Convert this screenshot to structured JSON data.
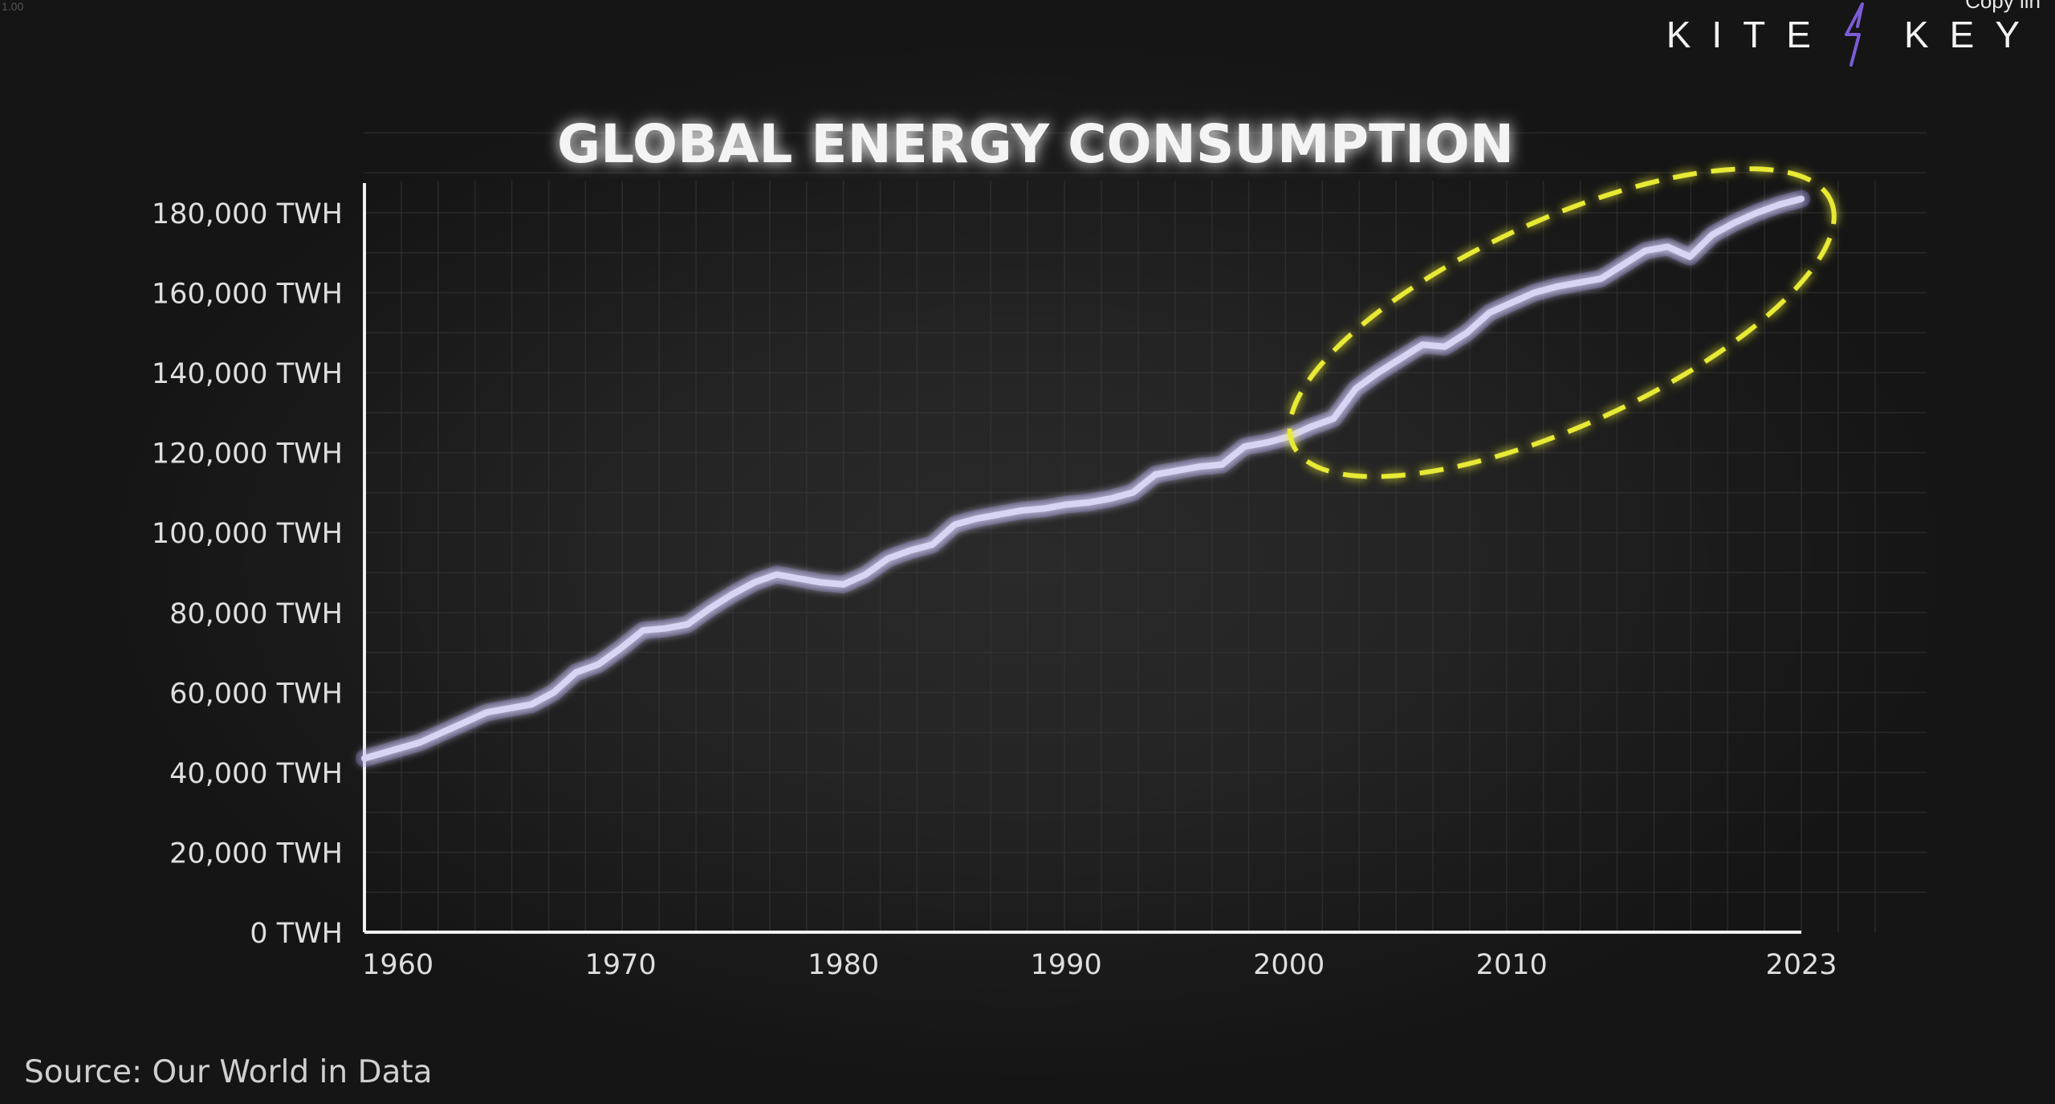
{
  "corner_text": "1.00",
  "brand": {
    "word_left": "KITE",
    "word_right": "KEY",
    "cut_text": "Copy lin",
    "bolt_color": "#7b5cd6"
  },
  "source_text": "Source: Our World in Data",
  "colors": {
    "line": "#d8d4f4",
    "line_glow": "#9c8cff",
    "highlight": "#e8ea36",
    "axis": "#f0f0f0",
    "grid": "#3a3a3a",
    "tick_text": "#dedede"
  },
  "chart_data": {
    "type": "line",
    "title": "GLOBAL ENERGY CONSUMPTION",
    "xlabel": "",
    "ylabel": "",
    "ylim": [
      0,
      180000
    ],
    "xlim": [
      1958.5,
      2023
    ],
    "y_ticks": [
      {
        "value": 0,
        "label": "0 TWH"
      },
      {
        "value": 20000,
        "label": "20,000 TWH"
      },
      {
        "value": 40000,
        "label": "40,000 TWH"
      },
      {
        "value": 60000,
        "label": "60,000 TWH"
      },
      {
        "value": 80000,
        "label": "80,000 TWH"
      },
      {
        "value": 100000,
        "label": "100,000 TWH"
      },
      {
        "value": 120000,
        "label": "120,000 TWH"
      },
      {
        "value": 140000,
        "label": "140,000 TWH"
      },
      {
        "value": 160000,
        "label": "160,000 TWH"
      },
      {
        "value": 180000,
        "label": "180,000 TWH"
      }
    ],
    "x_ticks": [
      {
        "value": 1960,
        "label": "1960"
      },
      {
        "value": 1970,
        "label": "1970"
      },
      {
        "value": 1980,
        "label": "1980"
      },
      {
        "value": 1990,
        "label": "1990"
      },
      {
        "value": 2000,
        "label": "2000"
      },
      {
        "value": 2010,
        "label": "2010"
      },
      {
        "value": 2023,
        "label": "2023"
      }
    ],
    "grid": true,
    "highlight_ellipse": {
      "x_start": 2001,
      "x_end": 2023.5,
      "y_low": 124000,
      "y_high": 181000
    },
    "series": [
      {
        "x": [
          1958.5,
          1961,
          1962,
          1963,
          1964,
          1965,
          1966,
          1967,
          1968,
          1969,
          1970,
          1971,
          1972,
          1973,
          1974,
          1975,
          1976,
          1977,
          1978,
          1979,
          1980,
          1981,
          1982,
          1983,
          1984,
          1985,
          1986,
          1987,
          1988,
          1989,
          1990,
          1991,
          1992,
          1993,
          1994,
          1995,
          1996,
          1997,
          1998,
          1999,
          2000,
          2001,
          2002,
          2003,
          2004,
          2005,
          2006,
          2007,
          2008,
          2009,
          2010,
          2011,
          2012,
          2013,
          2014,
          2015,
          2016,
          2017,
          2018,
          2019,
          2020,
          2021,
          2022,
          2023
        ],
        "y": [
          43500,
          47500,
          50000,
          52500,
          55000,
          56000,
          57000,
          60000,
          65000,
          67000,
          71000,
          75500,
          76000,
          77000,
          81000,
          84500,
          87500,
          89500,
          88500,
          87500,
          87000,
          89500,
          93500,
          95500,
          97000,
          102000,
          103500,
          104500,
          105500,
          106000,
          107000,
          107500,
          108500,
          110000,
          114500,
          115500,
          116500,
          117000,
          121500,
          122500,
          124000,
          126500,
          128500,
          136000,
          140000,
          143500,
          147000,
          146500,
          150000,
          155000,
          157500,
          160000,
          161500,
          162500,
          163500,
          167000,
          170500,
          171500,
          169000,
          174500,
          177500,
          180000,
          182000,
          183500
        ]
      }
    ]
  }
}
